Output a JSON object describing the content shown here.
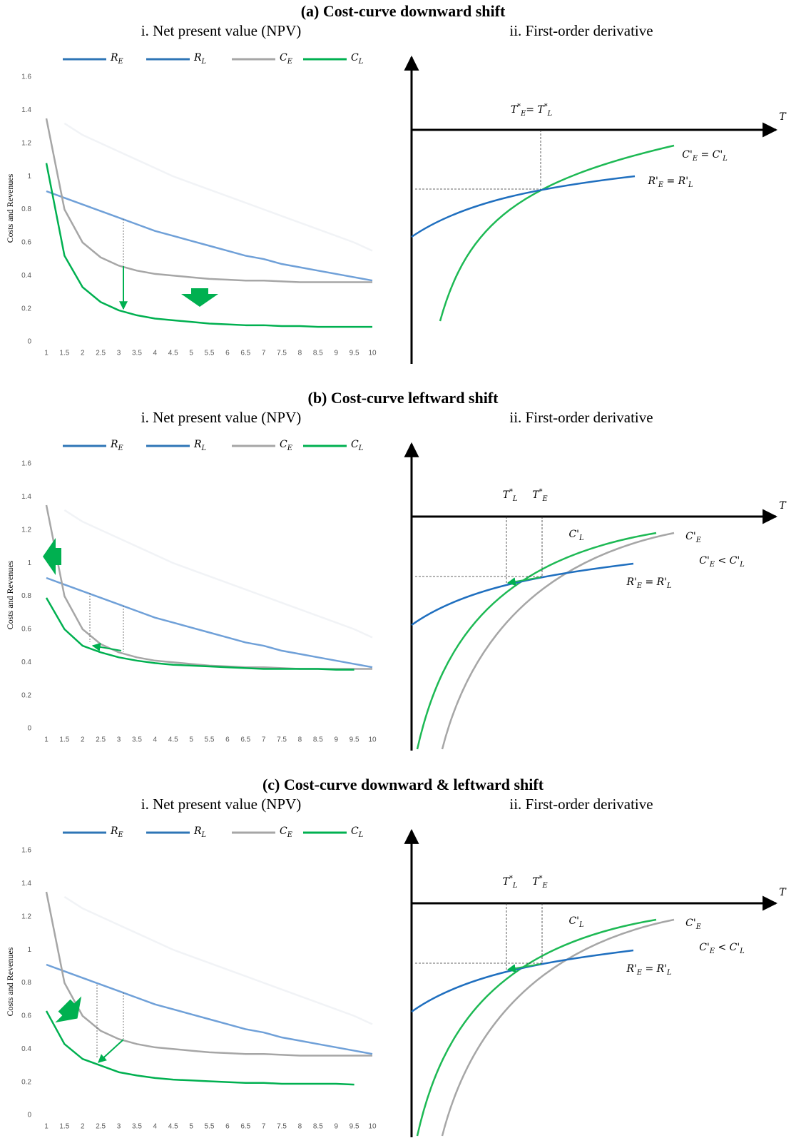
{
  "chart_data": [
    {
      "type": "line",
      "title": "(a) Cost-curve downward shift",
      "subtitle": "i. Net present value (NPV)",
      "y_label": "Costs and Revenues",
      "categories": [
        "1",
        "1.5",
        "2",
        "2.5",
        "3",
        "3.5",
        "4",
        "4.5",
        "5",
        "5.5",
        "6",
        "6.5",
        "7",
        "7.5",
        "8",
        "8.5",
        "9",
        "9.5",
        "10"
      ],
      "ylim": [
        0,
        1.6
      ],
      "yticks": [
        0,
        0.2,
        0.4,
        0.6,
        0.8,
        1,
        1.2,
        1.4,
        1.6
      ],
      "series": [
        {
          "name": "R_E",
          "color": "#f1f3f6",
          "legend_color": "#2e75b6",
          "values": [
            null,
            1.32,
            1.25,
            1.2,
            1.15,
            1.1,
            1.05,
            1.0,
            0.96,
            0.92,
            0.88,
            0.84,
            0.8,
            0.76,
            0.72,
            0.68,
            0.64,
            0.6,
            0.55
          ]
        },
        {
          "name": "R_L",
          "color": "#6fa0d8",
          "legend_color": "#2e75b6",
          "values": [
            0.91,
            0.87,
            0.83,
            0.79,
            0.75,
            0.71,
            0.67,
            0.64,
            0.61,
            0.58,
            0.55,
            0.52,
            0.5,
            0.47,
            0.45,
            0.43,
            0.41,
            0.39,
            0.37
          ]
        },
        {
          "name": "C_E",
          "color": "#a6a6a6",
          "values": [
            1.35,
            0.8,
            0.6,
            0.51,
            0.46,
            0.43,
            0.41,
            0.4,
            0.39,
            0.38,
            0.375,
            0.37,
            0.37,
            0.365,
            0.36,
            0.36,
            0.36,
            0.36,
            0.36
          ]
        },
        {
          "name": "C_L",
          "color": "#00b050",
          "values": [
            1.08,
            0.52,
            0.33,
            0.24,
            0.19,
            0.16,
            0.14,
            0.13,
            0.12,
            0.11,
            0.105,
            0.1,
            0.1,
            0.095,
            0.095,
            0.09,
            0.09,
            0.09,
            0.09
          ]
        }
      ]
    },
    {
      "type": "diagram",
      "subtitle": "ii. First-order derivative",
      "labels": [
        "T",
        "T^*_E= T^*_L",
        "C'_E = C'_L",
        "R'_E = R'_L"
      ]
    },
    {
      "type": "line",
      "title": "(b) Cost-curve leftward shift",
      "subtitle": "i. Net present value (NPV)",
      "y_label": "Costs and Revenues",
      "categories": [
        "1",
        "1.5",
        "2",
        "2.5",
        "3",
        "3.5",
        "4",
        "4.5",
        "5",
        "5.5",
        "6",
        "6.5",
        "7",
        "7.5",
        "8",
        "8.5",
        "9",
        "9.5",
        "10"
      ],
      "ylim": [
        0,
        1.6
      ],
      "yticks": [
        0,
        0.2,
        0.4,
        0.6,
        0.8,
        1,
        1.2,
        1.4,
        1.6
      ],
      "series": [
        {
          "name": "R_E",
          "color": "#f1f3f6",
          "legend_color": "#2e75b6",
          "values": [
            null,
            1.32,
            1.25,
            1.2,
            1.15,
            1.1,
            1.05,
            1.0,
            0.96,
            0.92,
            0.88,
            0.84,
            0.8,
            0.76,
            0.72,
            0.68,
            0.64,
            0.6,
            0.55
          ]
        },
        {
          "name": "R_L",
          "color": "#6fa0d8",
          "legend_color": "#2e75b6",
          "values": [
            0.91,
            0.87,
            0.83,
            0.79,
            0.75,
            0.71,
            0.67,
            0.64,
            0.61,
            0.58,
            0.55,
            0.52,
            0.5,
            0.47,
            0.45,
            0.43,
            0.41,
            0.39,
            0.37
          ]
        },
        {
          "name": "C_E",
          "color": "#a6a6a6",
          "values": [
            1.35,
            0.8,
            0.6,
            0.51,
            0.46,
            0.43,
            0.41,
            0.4,
            0.39,
            0.38,
            0.375,
            0.37,
            0.37,
            0.365,
            0.36,
            0.36,
            0.36,
            0.36,
            0.36
          ]
        },
        {
          "name": "C_L",
          "color": "#00b050",
          "values": [
            0.79,
            0.6,
            0.5,
            0.46,
            0.43,
            0.41,
            0.395,
            0.385,
            0.38,
            0.375,
            0.37,
            0.365,
            0.36,
            0.36,
            0.36,
            0.36,
            0.355,
            0.355,
            null
          ]
        }
      ]
    },
    {
      "type": "diagram",
      "subtitle": "ii. First-order derivative",
      "labels": [
        "T",
        "T^*_L",
        "T^*_E",
        "C'_L",
        "C'_E",
        "C'_E < C'_L",
        "R'_E = R'_L"
      ]
    },
    {
      "type": "line",
      "title": "(c) Cost-curve downward & leftward shift",
      "subtitle": "i. Net present value (NPV)",
      "y_label": "Costs and Revenues",
      "categories": [
        "1",
        "1.5",
        "2",
        "2.5",
        "3",
        "3.5",
        "4",
        "4.5",
        "5",
        "5.5",
        "6",
        "6.5",
        "7",
        "7.5",
        "8",
        "8.5",
        "9",
        "9.5",
        "10"
      ],
      "ylim": [
        0,
        1.6
      ],
      "yticks": [
        0,
        0.2,
        0.4,
        0.6,
        0.8,
        1,
        1.2,
        1.4,
        1.6
      ],
      "series": [
        {
          "name": "R_E",
          "color": "#f1f3f6",
          "legend_color": "#2e75b6",
          "values": [
            null,
            1.32,
            1.25,
            1.2,
            1.15,
            1.1,
            1.05,
            1.0,
            0.96,
            0.92,
            0.88,
            0.84,
            0.8,
            0.76,
            0.72,
            0.68,
            0.64,
            0.6,
            0.55
          ]
        },
        {
          "name": "R_L",
          "color": "#6fa0d8",
          "legend_color": "#2e75b6",
          "values": [
            0.91,
            0.87,
            0.83,
            0.79,
            0.75,
            0.71,
            0.67,
            0.64,
            0.61,
            0.58,
            0.55,
            0.52,
            0.5,
            0.47,
            0.45,
            0.43,
            0.41,
            0.39,
            0.37
          ]
        },
        {
          "name": "C_E",
          "color": "#a6a6a6",
          "values": [
            1.35,
            0.8,
            0.6,
            0.51,
            0.46,
            0.43,
            0.41,
            0.4,
            0.39,
            0.38,
            0.375,
            0.37,
            0.37,
            0.365,
            0.36,
            0.36,
            0.36,
            0.36,
            0.36
          ]
        },
        {
          "name": "C_L",
          "color": "#00b050",
          "values": [
            0.63,
            0.43,
            0.34,
            0.3,
            0.26,
            0.24,
            0.225,
            0.215,
            0.21,
            0.205,
            0.2,
            0.195,
            0.195,
            0.19,
            0.19,
            0.19,
            0.19,
            0.185,
            null
          ]
        }
      ]
    },
    {
      "type": "diagram",
      "subtitle": "ii. First-order derivative",
      "labels": [
        "T",
        "T^*_L",
        "T^*_E",
        "C'_L",
        "C'_E",
        "C'_E < C'_L",
        "R'_E = R'_L"
      ]
    }
  ]
}
